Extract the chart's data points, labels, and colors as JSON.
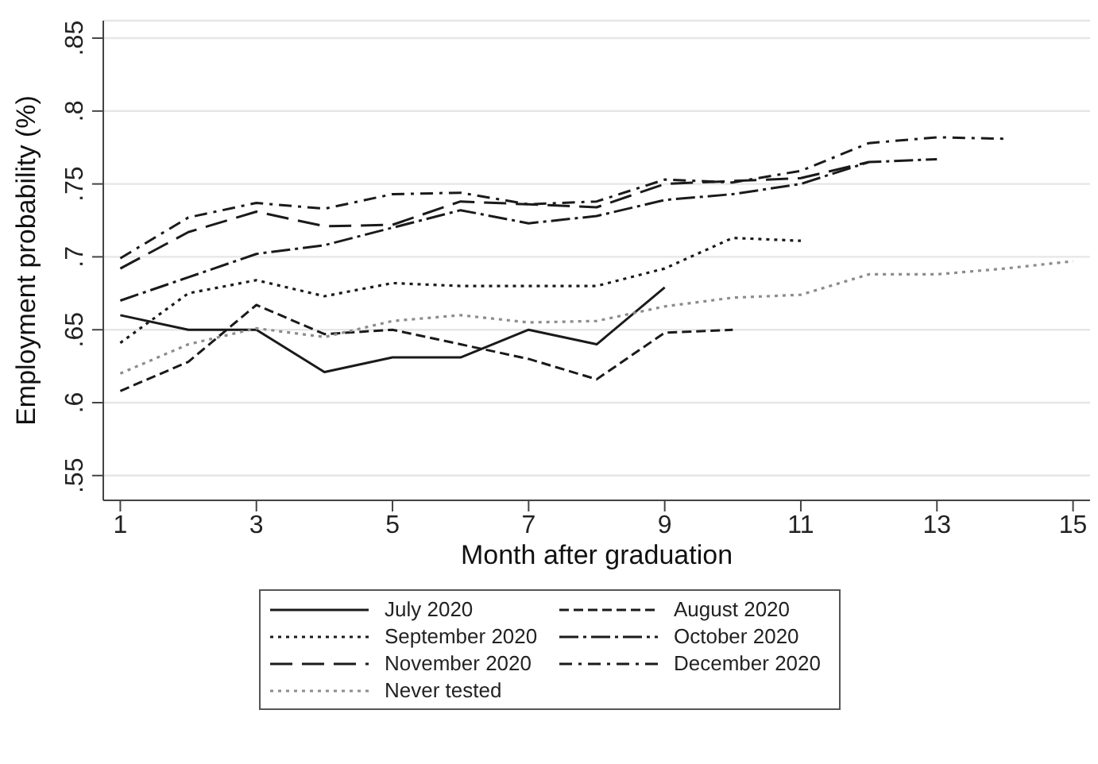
{
  "chart_data": {
    "type": "line",
    "xlabel": "Month after graduation",
    "ylabel": "Employment probability (%)",
    "xlim": [
      0.75,
      15.25
    ],
    "xticks": [
      1,
      3,
      5,
      7,
      9,
      11,
      13,
      15
    ],
    "ylim": [
      0.533,
      0.862
    ],
    "yticks": [
      {
        "value": 0.55,
        "label": ".55"
      },
      {
        "value": 0.6,
        "label": ".6"
      },
      {
        "value": 0.65,
        "label": ".65"
      },
      {
        "value": 0.7,
        "label": ".7"
      },
      {
        "value": 0.75,
        "label": ".75"
      },
      {
        "value": 0.8,
        "label": ".8"
      },
      {
        "value": 0.85,
        "label": ".85"
      }
    ],
    "grid": "y",
    "legend": "bottom",
    "marker": "none",
    "series": [
      {
        "name": "July 2020",
        "color": "#1a1a1a",
        "line_style": "solid",
        "x": [
          1,
          2,
          3,
          4,
          5,
          6,
          7,
          8,
          9
        ],
        "values": [
          0.66,
          0.65,
          0.65,
          0.621,
          0.631,
          0.631,
          0.65,
          0.64,
          0.679
        ]
      },
      {
        "name": "August 2020",
        "color": "#1a1a1a",
        "line_style": "dashed",
        "x": [
          1,
          2,
          3,
          4,
          5,
          6,
          7,
          8,
          9,
          10
        ],
        "values": [
          0.608,
          0.628,
          0.667,
          0.647,
          0.65,
          0.64,
          0.63,
          0.616,
          0.648,
          0.65
        ]
      },
      {
        "name": "September 2020",
        "color": "#1a1a1a",
        "line_style": "dotted",
        "x": [
          1,
          2,
          3,
          4,
          5,
          6,
          7,
          8,
          9,
          10,
          11
        ],
        "values": [
          0.641,
          0.675,
          0.684,
          0.673,
          0.682,
          0.68,
          0.68,
          0.68,
          0.692,
          0.713,
          0.711
        ]
      },
      {
        "name": "October 2020",
        "color": "#1a1a1a",
        "line_style": "longdashdot",
        "x": [
          1,
          2,
          3,
          4,
          5,
          6,
          7,
          8,
          9,
          10,
          11,
          12,
          13
        ],
        "values": [
          0.67,
          0.686,
          0.702,
          0.708,
          0.72,
          0.732,
          0.723,
          0.728,
          0.739,
          0.743,
          0.75,
          0.765,
          0.767
        ]
      },
      {
        "name": "November 2020",
        "color": "#1a1a1a",
        "line_style": "longdash",
        "x": [
          1,
          2,
          3,
          4,
          5,
          6,
          7,
          8,
          9,
          10,
          11,
          12
        ],
        "values": [
          0.692,
          0.717,
          0.731,
          0.721,
          0.722,
          0.738,
          0.736,
          0.734,
          0.75,
          0.752,
          0.754,
          0.765
        ]
      },
      {
        "name": "December 2020",
        "color": "#1a1a1a",
        "line_style": "dashdot",
        "x": [
          1,
          2,
          3,
          4,
          5,
          6,
          7,
          8,
          9,
          10,
          11,
          12,
          13,
          14
        ],
        "values": [
          0.699,
          0.727,
          0.737,
          0.733,
          0.743,
          0.744,
          0.736,
          0.738,
          0.753,
          0.751,
          0.759,
          0.778,
          0.782,
          0.781
        ]
      },
      {
        "name": "Never tested",
        "color": "#8c8c8c",
        "line_style": "dotted",
        "x": [
          1,
          2,
          3,
          4,
          5,
          6,
          7,
          8,
          9,
          10,
          11,
          12,
          13,
          14,
          15
        ],
        "values": [
          0.62,
          0.64,
          0.651,
          0.645,
          0.656,
          0.66,
          0.655,
          0.656,
          0.666,
          0.672,
          0.674,
          0.688,
          0.688,
          0.692,
          0.697
        ]
      }
    ]
  }
}
